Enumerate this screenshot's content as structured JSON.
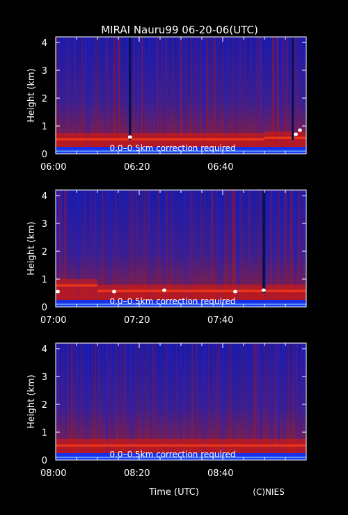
{
  "chart_data": {
    "type": "heatmap",
    "title": "MIRAI Nauru99 06-20-06(UTC)",
    "xlabel": "Time (UTC)",
    "credit": "(C)NIES",
    "colors": {
      "background": "#000000",
      "text": "#ffffff",
      "low_signal": "#1a1aa8",
      "mid_signal": "#7a1f4e",
      "high_signal": "#e01808",
      "saturated": "#ffffff"
    },
    "panels": [
      {
        "ylabel": "Height (km)",
        "yticks": [
          "0",
          "1",
          "2",
          "3",
          "4"
        ],
        "ylim": [
          0,
          4.2
        ],
        "xticks": [
          "06:00",
          "06:20",
          "06:40"
        ],
        "xlim_minutes": [
          0,
          60
        ],
        "note": "0.0–0.5km correction required",
        "layers": [
          {
            "start_min": 0,
            "end_min": 50,
            "height_km": 0.5
          },
          {
            "start_min": 50,
            "end_min": 60,
            "height_km": 0.55
          }
        ],
        "streaks": [
          {
            "time_min": 17.5,
            "width_min": 0.6,
            "top_km": 4.2
          },
          {
            "time_min": 56.5,
            "width_min": 0.5,
            "top_km": 4.2
          }
        ],
        "bright_spots": [
          {
            "time_min": 17.8,
            "height_km": 0.6
          },
          {
            "time_min": 57.5,
            "height_km": 0.7
          },
          {
            "time_min": 58.5,
            "height_km": 0.85
          }
        ]
      },
      {
        "ylabel": "Height (km)",
        "yticks": [
          "0",
          "1",
          "2",
          "3",
          "4"
        ],
        "ylim": [
          0,
          4.2
        ],
        "xticks": [
          "07:00",
          "07:20",
          "07:40"
        ],
        "xlim_minutes": [
          0,
          60
        ],
        "note": "0.0–0.5km correction required",
        "layers": [
          {
            "start_min": 0,
            "end_min": 10,
            "height_km": 0.75
          },
          {
            "start_min": 10,
            "end_min": 60,
            "height_km": 0.55
          }
        ],
        "streaks": [
          {
            "time_min": 49.5,
            "width_min": 0.7,
            "top_km": 4.2
          }
        ],
        "bright_spots": [
          {
            "time_min": 0.5,
            "height_km": 0.55
          },
          {
            "time_min": 14,
            "height_km": 0.55
          },
          {
            "time_min": 26,
            "height_km": 0.6
          },
          {
            "time_min": 43,
            "height_km": 0.55
          },
          {
            "time_min": 49.8,
            "height_km": 0.6
          }
        ]
      },
      {
        "ylabel": "Height (km)",
        "yticks": [
          "0",
          "1",
          "2",
          "3",
          "4"
        ],
        "ylim": [
          0,
          4.2
        ],
        "xticks": [
          "08:00",
          "08:20",
          "08:40"
        ],
        "xlim_minutes": [
          0,
          60
        ],
        "note": "0.0–0.5km correction required",
        "layers": [
          {
            "start_min": 0,
            "end_min": 60,
            "height_km": 0.5
          }
        ],
        "streaks": [],
        "bright_spots": []
      }
    ]
  }
}
